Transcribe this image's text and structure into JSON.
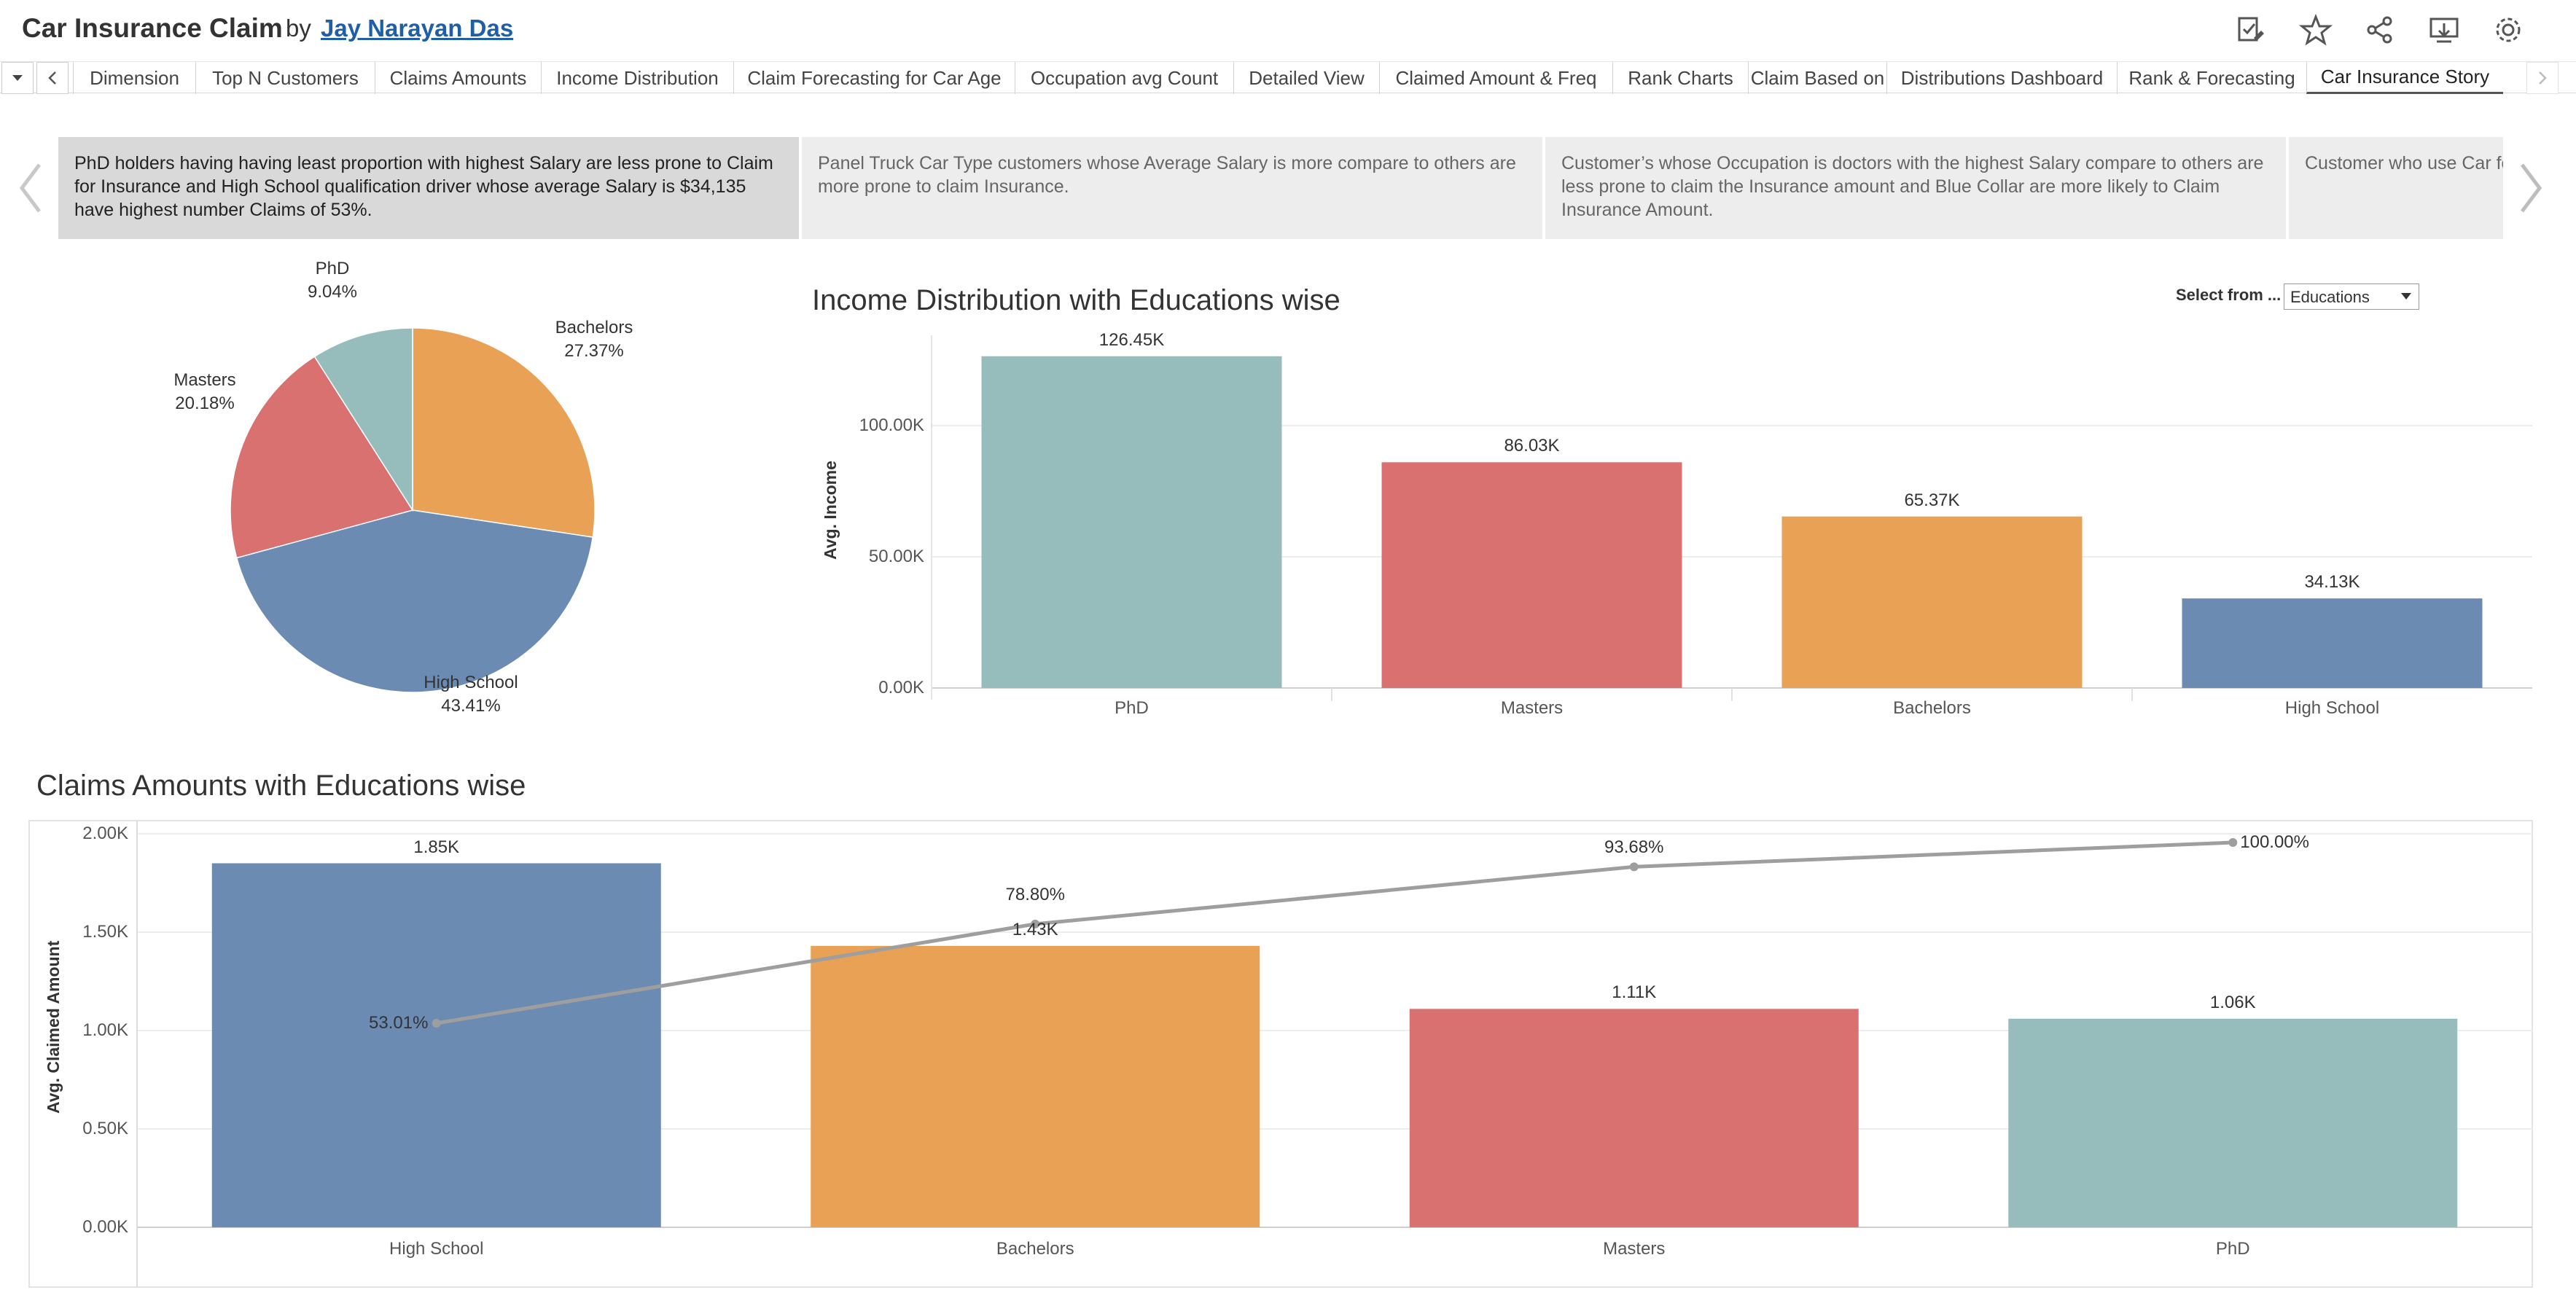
{
  "header": {
    "title": "Car Insurance Claim",
    "by": "by",
    "author": "Jay Narayan Das",
    "icons": [
      "edit-copy-icon",
      "star-icon",
      "share-icon",
      "download-icon",
      "settings-icon"
    ]
  },
  "tabs": [
    "Dimension",
    "Top N Customers",
    "Claims Amounts",
    "Income Distribution",
    "Claim Forecasting for Car Age",
    "Occupation avg Count",
    "Detailed View",
    "Claimed Amount & Freq",
    "Rank Charts",
    "Claim Based on",
    "Distributions Dashboard",
    "Rank & Forecasting",
    "Car Insurance Story"
  ],
  "tabs_active": "Car Insurance Story",
  "story_points": [
    "PhD holders having having least proportion with highest Salary are less prone to Claim for Insurance and High School qualification driver whose average Salary is $34,135 have highest number Claims of 53%.",
    "Panel Truck Car Type customers whose Average Salary is more compare to others are more prone to claim Insurance.",
    "Customer’s whose Occupation is doctors with the highest Salary compare to others are less prone to claim the Insurance amount and Blue Collar are more likely to Claim Insurance Amount.",
    "Customer who use Car fo"
  ],
  "filter": {
    "label": "Select from ...",
    "value": "Educations"
  },
  "colors": {
    "PhD": "#96bdbb",
    "Masters": "#d97171",
    "Bachelors": "#e8a155",
    "High School": "#6c8bb2",
    "line": "#9e9e9e"
  },
  "chart_data": [
    {
      "type": "pie",
      "categories": [
        "Bachelors",
        "High School",
        "Masters",
        "PhD"
      ],
      "values": [
        27.37,
        43.41,
        20.18,
        9.04
      ],
      "labels": [
        "27.37%",
        "43.41%",
        "20.18%",
        "9.04%"
      ]
    },
    {
      "type": "bar",
      "title": "Income Distribution with Educations wise",
      "categories": [
        "PhD",
        "Masters",
        "Bachelors",
        "High School"
      ],
      "values": [
        126450,
        86030,
        65370,
        34130
      ],
      "value_labels": [
        "126.45K",
        "86.03K",
        "65.37K",
        "34.13K"
      ],
      "ylabel": "Avg. Income",
      "yticks": [
        "0.00K",
        "50.00K",
        "100.00K"
      ],
      "ylim": [
        0,
        140000
      ]
    },
    {
      "type": "bar",
      "title": "Claims Amounts with Educations wise",
      "categories": [
        "High School",
        "Bachelors",
        "Masters",
        "PhD"
      ],
      "values": [
        1850,
        1430,
        1110,
        1060
      ],
      "value_labels": [
        "1.85K",
        "1.43K",
        "1.11K",
        "1.06K"
      ],
      "ylabel": "Avg. Claimed Amount",
      "yticks": [
        "0.00K",
        "0.50K",
        "1.00K",
        "1.50K",
        "2.00K"
      ],
      "ylim": [
        0,
        2000
      ],
      "line_series": {
        "type": "line",
        "values": [
          53.01,
          78.8,
          93.68,
          100.0
        ],
        "value_labels": [
          "53.01%",
          "78.80%",
          "93.68%",
          "100.00%"
        ]
      }
    }
  ]
}
